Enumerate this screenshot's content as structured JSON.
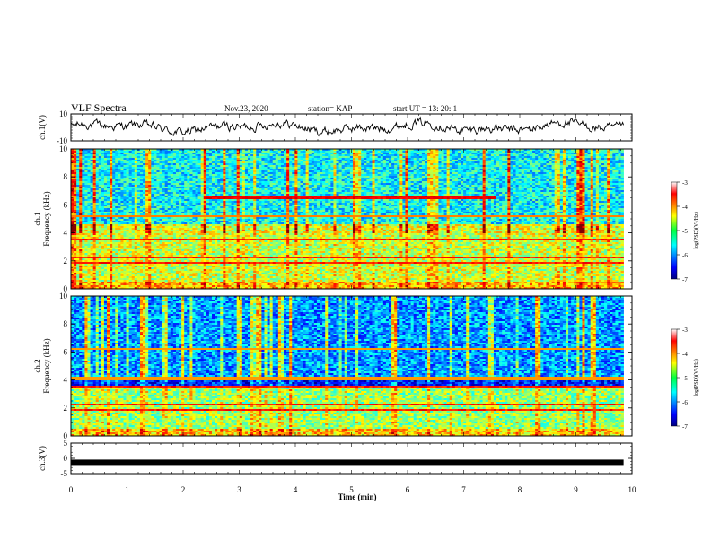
{
  "header": {
    "title": "VLF Spectra",
    "date": "Nov.23, 2020",
    "station": "station= KAP",
    "start_ut": "start  UT =   13: 20: 1"
  },
  "chart_data": [
    {
      "type": "line",
      "name": "ch1-waveform",
      "ylabel": "ch.1(V)",
      "ylim": [
        -10,
        10
      ],
      "y_tick_labels": [
        "10",
        "-10"
      ],
      "xlim": [
        0,
        10
      ],
      "x_extent_min": [
        0,
        9.85
      ],
      "approx_level_V": 0
    },
    {
      "type": "heatmap",
      "name": "ch1-spectrogram",
      "ylabel": "ch.1 Frequency (kHz)",
      "ylim": [
        0,
        10
      ],
      "y_tick_labels": [
        "0",
        "2",
        "4",
        "6",
        "8",
        "10"
      ],
      "xlim": [
        0,
        10
      ],
      "x_extent_min": [
        0,
        9.85
      ],
      "colorbar": {
        "label": "log(PSD)(V²/Hz)",
        "range": [
          -7,
          -3
        ],
        "tick_labels": [
          "-3",
          "-4",
          "-5",
          "-6",
          "-7"
        ],
        "colormap": "jet"
      }
    },
    {
      "type": "heatmap",
      "name": "ch2-spectrogram",
      "ylabel": "ch.2 Frequency (kHz)",
      "ylim": [
        0,
        10
      ],
      "y_tick_labels": [
        "0",
        "2",
        "4",
        "6",
        "8",
        "10"
      ],
      "xlim": [
        0,
        10
      ],
      "x_extent_min": [
        0,
        9.85
      ],
      "colorbar": {
        "label": "log(PSD)(V²/Hz)",
        "range": [
          -7,
          -3
        ],
        "tick_labels": [
          "-3",
          "-4",
          "-5",
          "-6",
          "-7"
        ],
        "colormap": "jet"
      }
    },
    {
      "type": "line",
      "name": "ch3-waveform",
      "ylabel": "ch.3(V)",
      "ylim": [
        -5,
        5
      ],
      "y_tick_labels": [
        "5",
        "0",
        "-5"
      ],
      "xlim": [
        0,
        10
      ],
      "x_extent_min": [
        0,
        9.85
      ],
      "approx_level_V": -1.3
    }
  ],
  "x_axis": {
    "label": "Time  (min)",
    "range": [
      0,
      10
    ],
    "tick_labels": [
      "0",
      "1",
      "2",
      "3",
      "4",
      "5",
      "6",
      "7",
      "8",
      "9",
      "10"
    ]
  }
}
